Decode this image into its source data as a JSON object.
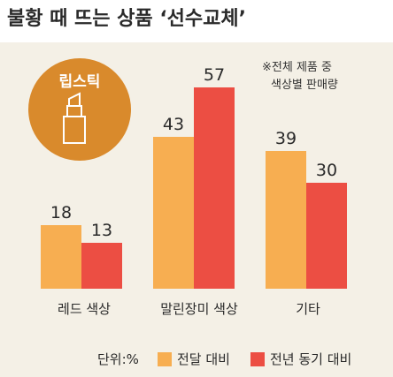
{
  "colors": {
    "background_panel": "#f4f0e6",
    "series_prev_month": "#f7ae51",
    "series_prev_year": "#ec4e43",
    "badge": "#d98a2c"
  },
  "badge_label": "립스틱",
  "badge_icon": "lipstick-icon",
  "chart_data": {
    "type": "bar",
    "title": "불황 때 뜨는 상품 ‘선수교체’",
    "note_lines": [
      "※전체 제품 중",
      "색상별 판매량"
    ],
    "unit_label": "단위:%",
    "categories": [
      "레드 색상",
      "말린장미 색상",
      "기타"
    ],
    "series": [
      {
        "name": "전달 대비",
        "values": [
          18,
          43,
          39
        ]
      },
      {
        "name": "전년 동기 대비",
        "values": [
          13,
          57,
          30
        ]
      }
    ],
    "xlabel": "",
    "ylabel": "",
    "ylim": [
      0,
      60
    ],
    "grid": false,
    "legend": "bottom-right"
  }
}
